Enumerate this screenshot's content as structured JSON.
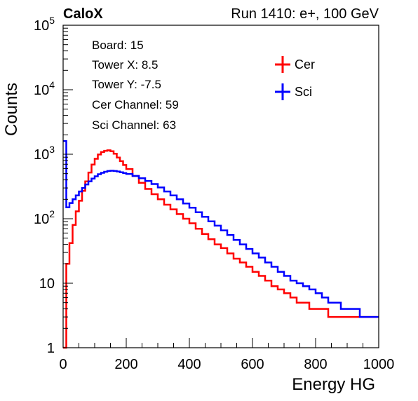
{
  "chart_data": {
    "type": "line",
    "step": true,
    "y_scale": "log",
    "title_left": "CaloX",
    "title_right": "Run 1410: e+, 100 GeV",
    "xlabel": "Energy HG",
    "ylabel": "Counts",
    "xlim": [
      0,
      1000
    ],
    "ylim": [
      1,
      100000
    ],
    "x_ticks": [
      "0",
      "200",
      "400",
      "600",
      "800",
      "1000"
    ],
    "y_ticks": [
      {
        "value": 1,
        "label": "1"
      },
      {
        "value": 10,
        "label": "10"
      },
      {
        "value": 100,
        "label": "10",
        "exp": "2"
      },
      {
        "value": 1000,
        "label": "10",
        "exp": "3"
      },
      {
        "value": 10000,
        "label": "10",
        "exp": "4"
      },
      {
        "value": 100000,
        "label": "10",
        "exp": "5"
      }
    ],
    "info_lines": [
      "Board: 15",
      "Tower X: 8.5",
      "Tower Y: -7.5",
      "Cer Channel: 59",
      "Sci Channel: 63"
    ],
    "legend": {
      "placement": "top-right"
    },
    "series": [
      {
        "name": "Cer",
        "color": "#ff0000",
        "x": [
          0,
          10,
          20,
          30,
          40,
          50,
          60,
          70,
          80,
          90,
          100,
          110,
          120,
          130,
          140,
          150,
          160,
          170,
          180,
          190,
          200,
          220,
          240,
          260,
          280,
          300,
          320,
          340,
          360,
          380,
          400,
          420,
          440,
          460,
          480,
          500,
          520,
          540,
          560,
          580,
          600,
          620,
          640,
          660,
          680,
          700,
          720,
          740,
          760,
          780,
          800,
          820,
          840,
          860,
          880,
          900,
          920,
          940,
          960,
          980,
          1000
        ],
        "values": [
          1,
          20,
          42,
          80,
          130,
          190,
          270,
          380,
          520,
          690,
          850,
          990,
          1080,
          1130,
          1150,
          1110,
          1020,
          890,
          780,
          680,
          590,
          460,
          360,
          290,
          240,
          200,
          165,
          140,
          118,
          100,
          85,
          70,
          58,
          48,
          40,
          35,
          29,
          24,
          21,
          18,
          15,
          13,
          11,
          9,
          8,
          7,
          6,
          5,
          5,
          4,
          4,
          4,
          3,
          3,
          3,
          3,
          3,
          3,
          3,
          3,
          3
        ]
      },
      {
        "name": "Sci",
        "color": "#0000ff",
        "x": [
          0,
          10,
          20,
          30,
          40,
          50,
          60,
          70,
          80,
          90,
          100,
          110,
          120,
          130,
          140,
          150,
          160,
          170,
          180,
          190,
          200,
          220,
          240,
          260,
          280,
          300,
          320,
          340,
          360,
          380,
          400,
          420,
          440,
          460,
          480,
          500,
          520,
          540,
          560,
          580,
          600,
          620,
          640,
          660,
          680,
          700,
          720,
          740,
          760,
          780,
          800,
          820,
          840,
          860,
          880,
          900,
          920,
          940,
          960,
          980,
          1000
        ],
        "values": [
          1600,
          150,
          175,
          200,
          230,
          265,
          300,
          340,
          380,
          420,
          455,
          490,
          515,
          535,
          550,
          555,
          550,
          540,
          525,
          510,
          495,
          460,
          425,
          385,
          345,
          305,
          265,
          230,
          200,
          172,
          148,
          126,
          107,
          91,
          78,
          66,
          56,
          47,
          40,
          34,
          29,
          25,
          21,
          18,
          15,
          13,
          11,
          10,
          9,
          8,
          7,
          6,
          5,
          5,
          4,
          4,
          4,
          3,
          3,
          3,
          3
        ]
      }
    ]
  }
}
